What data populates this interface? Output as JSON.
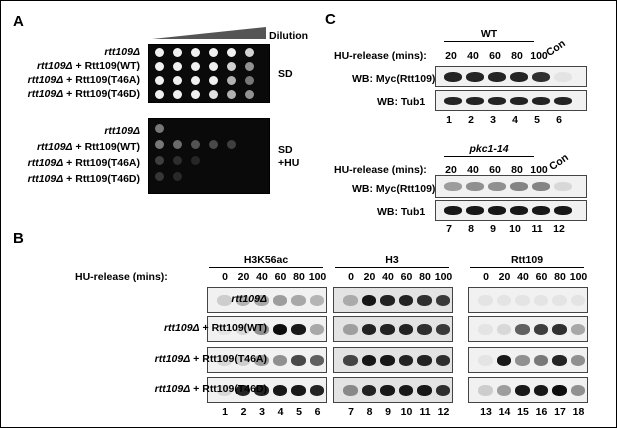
{
  "panels": {
    "A": {
      "letter": "A",
      "dilution": "Dilution",
      "strain_rows": [
        {
          "italic": "rtt109Δ",
          "rest": ""
        },
        {
          "italic": "rtt109Δ",
          "rest": " + Rtt109(WT)"
        },
        {
          "italic": "rtt109Δ",
          "rest": " + Rtt109(T46A)"
        },
        {
          "italic": "rtt109Δ",
          "rest": " + Rtt109(T46D)"
        }
      ],
      "sd_label": "SD",
      "hu_label_1": "SD",
      "hu_label_2": "+HU",
      "sd_spots": [
        [
          1,
          1,
          1,
          1,
          1,
          0.8
        ],
        [
          1,
          1,
          1,
          1,
          0.8,
          0.6
        ],
        [
          1,
          1,
          1,
          1,
          0.7,
          0.5
        ],
        [
          1,
          1,
          1,
          0.9,
          0.7,
          0.6
        ]
      ],
      "hu_spots": [
        [
          0.5,
          0,
          0,
          0,
          0,
          0
        ],
        [
          0.5,
          0.45,
          0.35,
          0.3,
          0.25,
          0
        ],
        [
          0.25,
          0.15,
          0.1,
          0,
          0,
          0
        ],
        [
          0.2,
          0.12,
          0,
          0,
          0,
          0
        ]
      ]
    },
    "B": {
      "letter": "B",
      "hu_release_label": "HU-release (mins):",
      "timepoints": [
        "0",
        "20",
        "40",
        "60",
        "80",
        "100"
      ],
      "groups": [
        {
          "title": "H3K56ac",
          "lanes": [
            "1",
            "2",
            "3",
            "4",
            "5",
            "6"
          ]
        },
        {
          "title": "H3",
          "lanes": [
            "7",
            "8",
            "9",
            "10",
            "11",
            "12"
          ]
        },
        {
          "title": "Rtt109",
          "lanes": [
            "13",
            "14",
            "15",
            "16",
            "17",
            "18"
          ]
        }
      ],
      "rows": [
        {
          "italic": "rtt109Δ",
          "rest": ""
        },
        {
          "italic": "rtt109Δ",
          "rest": " + Rtt109(WT)"
        },
        {
          "italic": "rtt109Δ",
          "rest": " + Rtt109(T46A)"
        },
        {
          "italic": "rtt109Δ",
          "rest": " + Rtt109(T46D)"
        }
      ],
      "intensities": [
        [
          [
            0.15,
            0.25,
            0.3,
            0.35,
            0.3,
            0.25
          ],
          [
            0.25,
            0.9,
            0.85,
            0.85,
            0.8,
            0.75
          ],
          [
            0.05,
            0.05,
            0.05,
            0.05,
            0.05,
            0.05
          ]
        ],
        [
          [
            0.05,
            0.1,
            0.4,
            0.95,
            0.9,
            0.3
          ],
          [
            0.3,
            0.85,
            0.85,
            0.85,
            0.8,
            0.75
          ],
          [
            0.05,
            0.1,
            0.6,
            0.75,
            0.8,
            0.3
          ]
        ],
        [
          [
            0.1,
            0.15,
            0.35,
            0.4,
            0.7,
            0.6
          ],
          [
            0.7,
            0.9,
            0.9,
            0.85,
            0.85,
            0.8
          ],
          [
            0.05,
            0.9,
            0.4,
            0.5,
            0.85,
            0.4
          ]
        ],
        [
          [
            0.1,
            0.85,
            0.85,
            0.9,
            0.9,
            0.85
          ],
          [
            0.4,
            0.85,
            0.9,
            0.9,
            0.9,
            0.8
          ],
          [
            0.15,
            0.35,
            0.9,
            0.9,
            0.95,
            0.4
          ]
        ]
      ]
    },
    "C": {
      "letter": "C",
      "top_title": "WT",
      "bottom_title": "pkc1-14",
      "hu_release_label": "HU-release (mins):",
      "timepoints": [
        "20",
        "40",
        "60",
        "80",
        "100"
      ],
      "con": "Con",
      "row_myc": "WB: Myc(Rtt109)",
      "row_tub": "WB: Tub1",
      "top_lanes": [
        "1",
        "2",
        "3",
        "4",
        "5",
        "6"
      ],
      "bottom_lanes": [
        "7",
        "8",
        "9",
        "10",
        "11",
        "12"
      ],
      "top_myc": [
        0.85,
        0.85,
        0.85,
        0.85,
        0.8,
        0.05
      ],
      "top_tub": [
        0.85,
        0.85,
        0.85,
        0.85,
        0.85,
        0.85
      ],
      "bottom_myc": [
        0.35,
        0.4,
        0.4,
        0.45,
        0.45,
        0.1
      ],
      "bottom_tub": [
        0.9,
        0.9,
        0.9,
        0.9,
        0.9,
        0.9
      ]
    }
  }
}
